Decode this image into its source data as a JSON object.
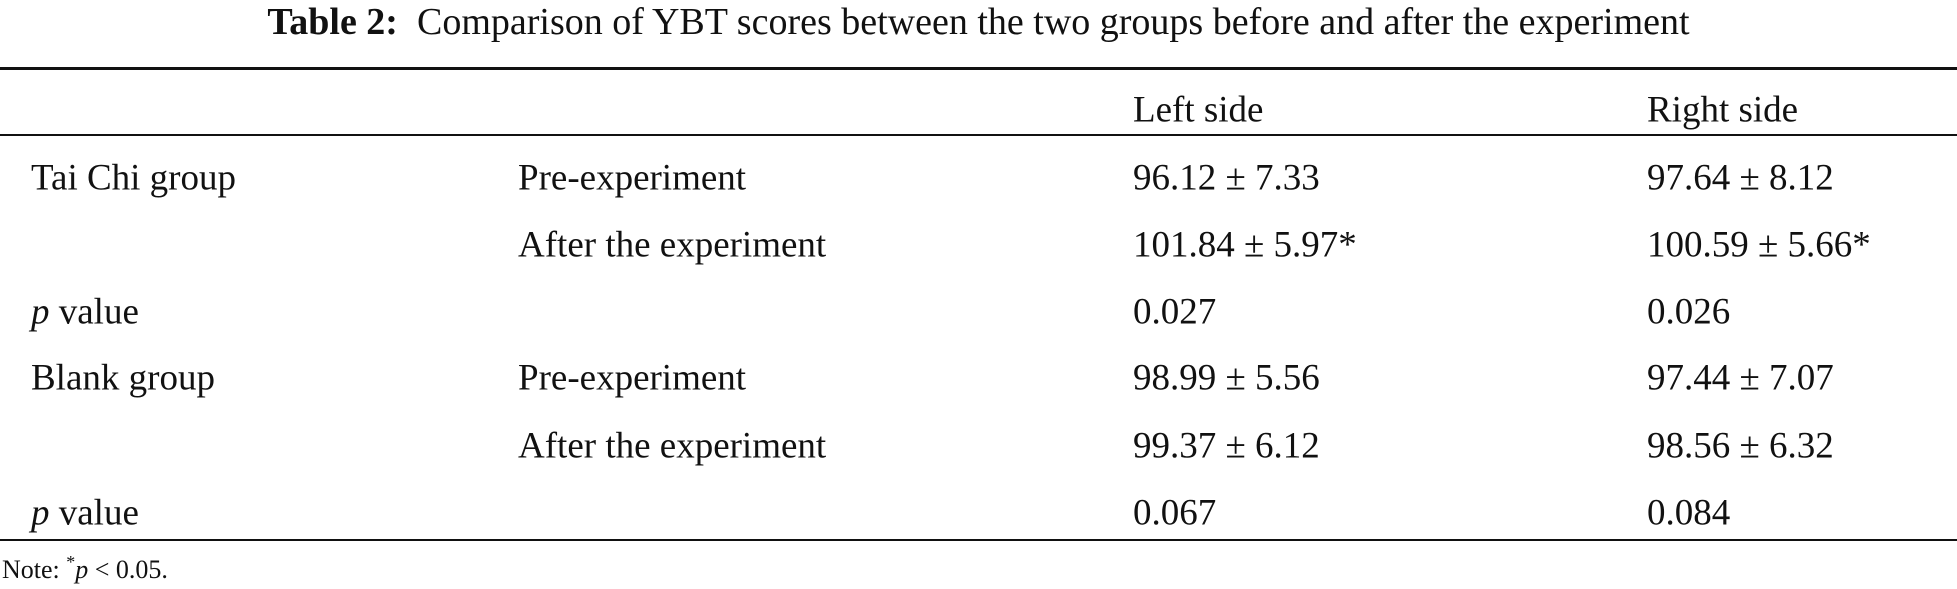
{
  "title": {
    "label": "Table 2:",
    "text": "Comparison of YBT scores between the two groups before and after the experiment"
  },
  "table": {
    "header": {
      "left": "Left side",
      "right": "Right side"
    },
    "rows": [
      {
        "group": "Tai Chi group",
        "condition": "Pre-experiment",
        "left": "96.12 ± 7.33",
        "right": "97.64 ± 8.12"
      },
      {
        "condition": "After the experiment",
        "left": "101.84 ± 5.97*",
        "right": "100.59 ± 5.66*"
      },
      {
        "group_italic": "p",
        "group": "value",
        "left": "0.027",
        "right": "0.026"
      },
      {
        "group": "Blank group",
        "condition": "Pre-experiment",
        "left": "98.99 ± 5.56",
        "right": "97.44 ± 7.07"
      },
      {
        "condition": "After the experiment",
        "left": "99.37 ± 6.12",
        "right": "98.56 ± 6.32"
      },
      {
        "group_italic": "p",
        "group": "value",
        "left": "0.067",
        "right": "0.084"
      }
    ]
  },
  "note": {
    "label": "Note:",
    "mark": "*",
    "italic": "p",
    "text": "< 0.05."
  }
}
